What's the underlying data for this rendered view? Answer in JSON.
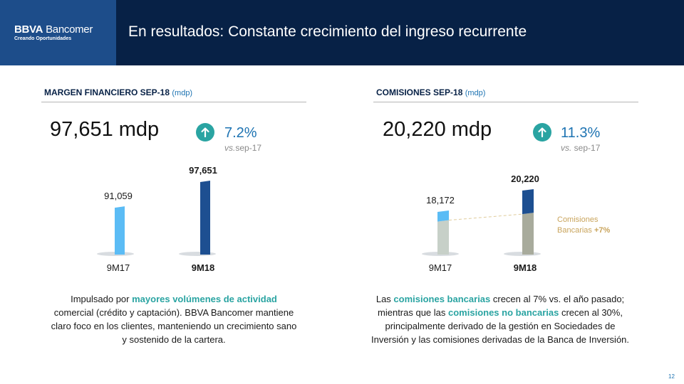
{
  "header": {
    "logo_brand": "BBVA",
    "logo_name": "Bancomer",
    "logo_tagline": "Creando Oportunidades",
    "title": "En resultados: Constante crecimiento del ingreso recurrente"
  },
  "left": {
    "section_title": "MARGEN FINANCIERO SEP-18",
    "section_unit": "(mdp)",
    "big_value": "97,651 mdp",
    "growth": "7.2%",
    "vs_prefix": "vs.",
    "vs_suffix": "sep-17",
    "paragraph": {
      "p1": "Impulsado por ",
      "h1": "mayores volúmenes de actividad",
      "p2": " comercial (crédito y captación). BBVA Bancomer mantiene claro foco en los clientes, manteniendo un crecimiento sano y sostenido de la cartera."
    }
  },
  "right": {
    "section_title": "COMISIONES SEP-18",
    "section_unit": "(mdp)",
    "big_value": "20,220 mdp",
    "growth": "11.3%",
    "vs_prefix": "vs.",
    "vs_suffix": " sep-17",
    "annotation_line1": "Comisiones",
    "annotation_line2": "Bancarias",
    "annotation_value": "+7%",
    "paragraph": {
      "p1": "Las ",
      "h1": "comisiones bancarias",
      "p2": " crecen al 7% vs. el año pasado; mientras que las ",
      "h2": "comisiones no bancarias",
      "p3": " crecen al 30%, principalmente derivado de la gestión en Sociedades de Inversión y las comisiones derivadas de la Banca de Inversión."
    }
  },
  "chart_data": [
    {
      "type": "bar",
      "categories": [
        "9M17",
        "9M18"
      ],
      "values": [
        91059,
        97651
      ],
      "value_labels": [
        "91,059",
        "97,651"
      ],
      "colors": [
        "#5bbcf5",
        "#1d4f91"
      ]
    },
    {
      "type": "bar",
      "stacked": true,
      "categories": [
        "9M17",
        "9M18"
      ],
      "values": [
        18172,
        20220
      ],
      "value_labels": [
        "18,172",
        "20,220"
      ],
      "colors": {
        "bancarias_9M17": "#c7d0c8",
        "otras_9M17": "#5bbcf5",
        "bancarias_9M18": "#a8ab9c",
        "otras_9M18": "#1d4f91"
      }
    }
  ],
  "page_number": "12"
}
